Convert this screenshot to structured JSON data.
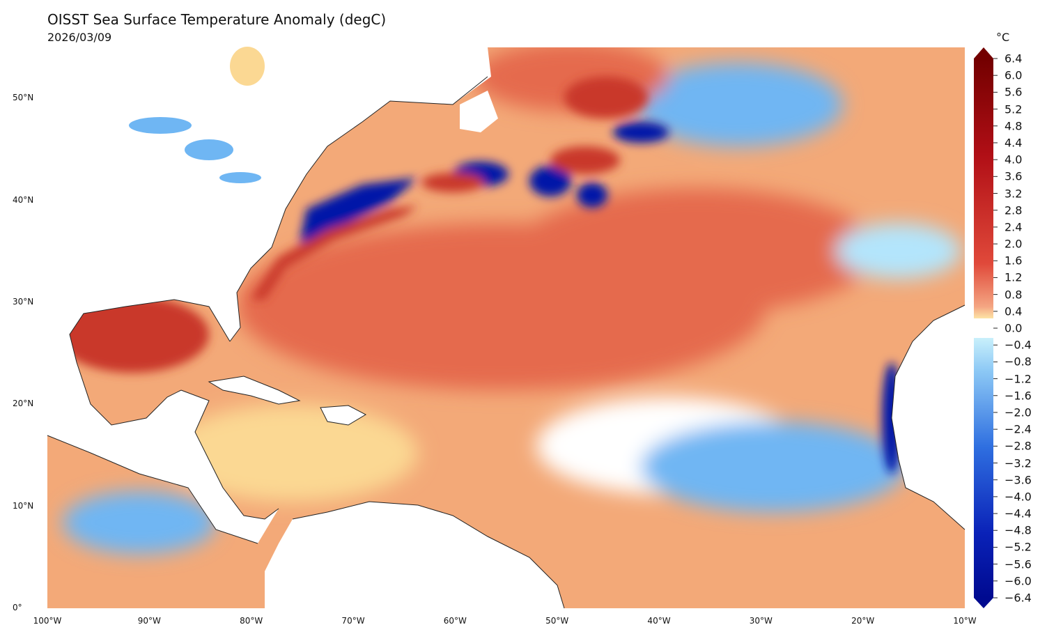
{
  "header": {
    "title": "OISST Sea Surface Temperature Anomaly (degC)",
    "date": "2026/03/09"
  },
  "axes": {
    "lon_range": [
      -100,
      -10
    ],
    "lat_range": [
      0,
      55
    ],
    "lon_ticks": [
      {
        "value": -100,
        "label": "100°W"
      },
      {
        "value": -90,
        "label": "90°W"
      },
      {
        "value": -80,
        "label": "80°W"
      },
      {
        "value": -70,
        "label": "70°W"
      },
      {
        "value": -60,
        "label": "60°W"
      },
      {
        "value": -50,
        "label": "50°W"
      },
      {
        "value": -40,
        "label": "40°W"
      },
      {
        "value": -30,
        "label": "30°W"
      },
      {
        "value": -20,
        "label": "20°W"
      },
      {
        "value": -10,
        "label": "10°W"
      }
    ],
    "lat_ticks": [
      {
        "value": 50,
        "label": "50°N"
      },
      {
        "value": 40,
        "label": "40°N"
      },
      {
        "value": 30,
        "label": "30°N"
      },
      {
        "value": 20,
        "label": "20°N"
      },
      {
        "value": 10,
        "label": "10°N"
      },
      {
        "value": 0,
        "label": "0°"
      }
    ]
  },
  "colorbar": {
    "unit": "°C",
    "labels": [
      "6.4",
      "6.0",
      "5.6",
      "5.2",
      "4.8",
      "4.4",
      "4.0",
      "3.6",
      "3.2",
      "2.8",
      "2.4",
      "2.0",
      "1.6",
      "1.2",
      "0.8",
      "0.4",
      "0.0",
      "−0.4",
      "−0.8",
      "−1.2",
      "−1.6",
      "−2.0",
      "−2.4",
      "−2.8",
      "−3.2",
      "−3.6",
      "−4.0",
      "−4.4",
      "−4.8",
      "−5.2",
      "−5.6",
      "−6.0",
      "−6.4"
    ],
    "values": [
      6.4,
      6.0,
      5.6,
      5.2,
      4.8,
      4.4,
      4.0,
      3.6,
      3.2,
      2.8,
      2.4,
      2.0,
      1.6,
      1.2,
      0.8,
      0.4,
      0.0,
      -0.4,
      -0.8,
      -1.2,
      -1.6,
      -2.0,
      -2.4,
      -2.8,
      -3.2,
      -3.6,
      -4.0,
      -4.4,
      -4.8,
      -5.2,
      -5.6,
      -6.0,
      -6.4
    ],
    "colors": {
      "dark_red": "#730000",
      "red": "#d7301f",
      "orange": "#f08a5c",
      "light_orange": "#fdd49e",
      "neutral": "#ffffff",
      "light_blue": "#b3e5fc",
      "blue": "#3a7de0",
      "dark_blue": "#0010a0"
    }
  },
  "features": {
    "land_color": "#ffffff",
    "coast_color": "#222222"
  },
  "map_colors": {
    "ocean_warm": "#f3a978",
    "warm_core": "#e56a4e",
    "gulf_hot": "#c9392b",
    "neutral": "#ffffff",
    "cool": "#6fb6f3",
    "cold": "#1f4fd6",
    "very_cold": "#0017a8",
    "light_warm": "#fbd893"
  }
}
